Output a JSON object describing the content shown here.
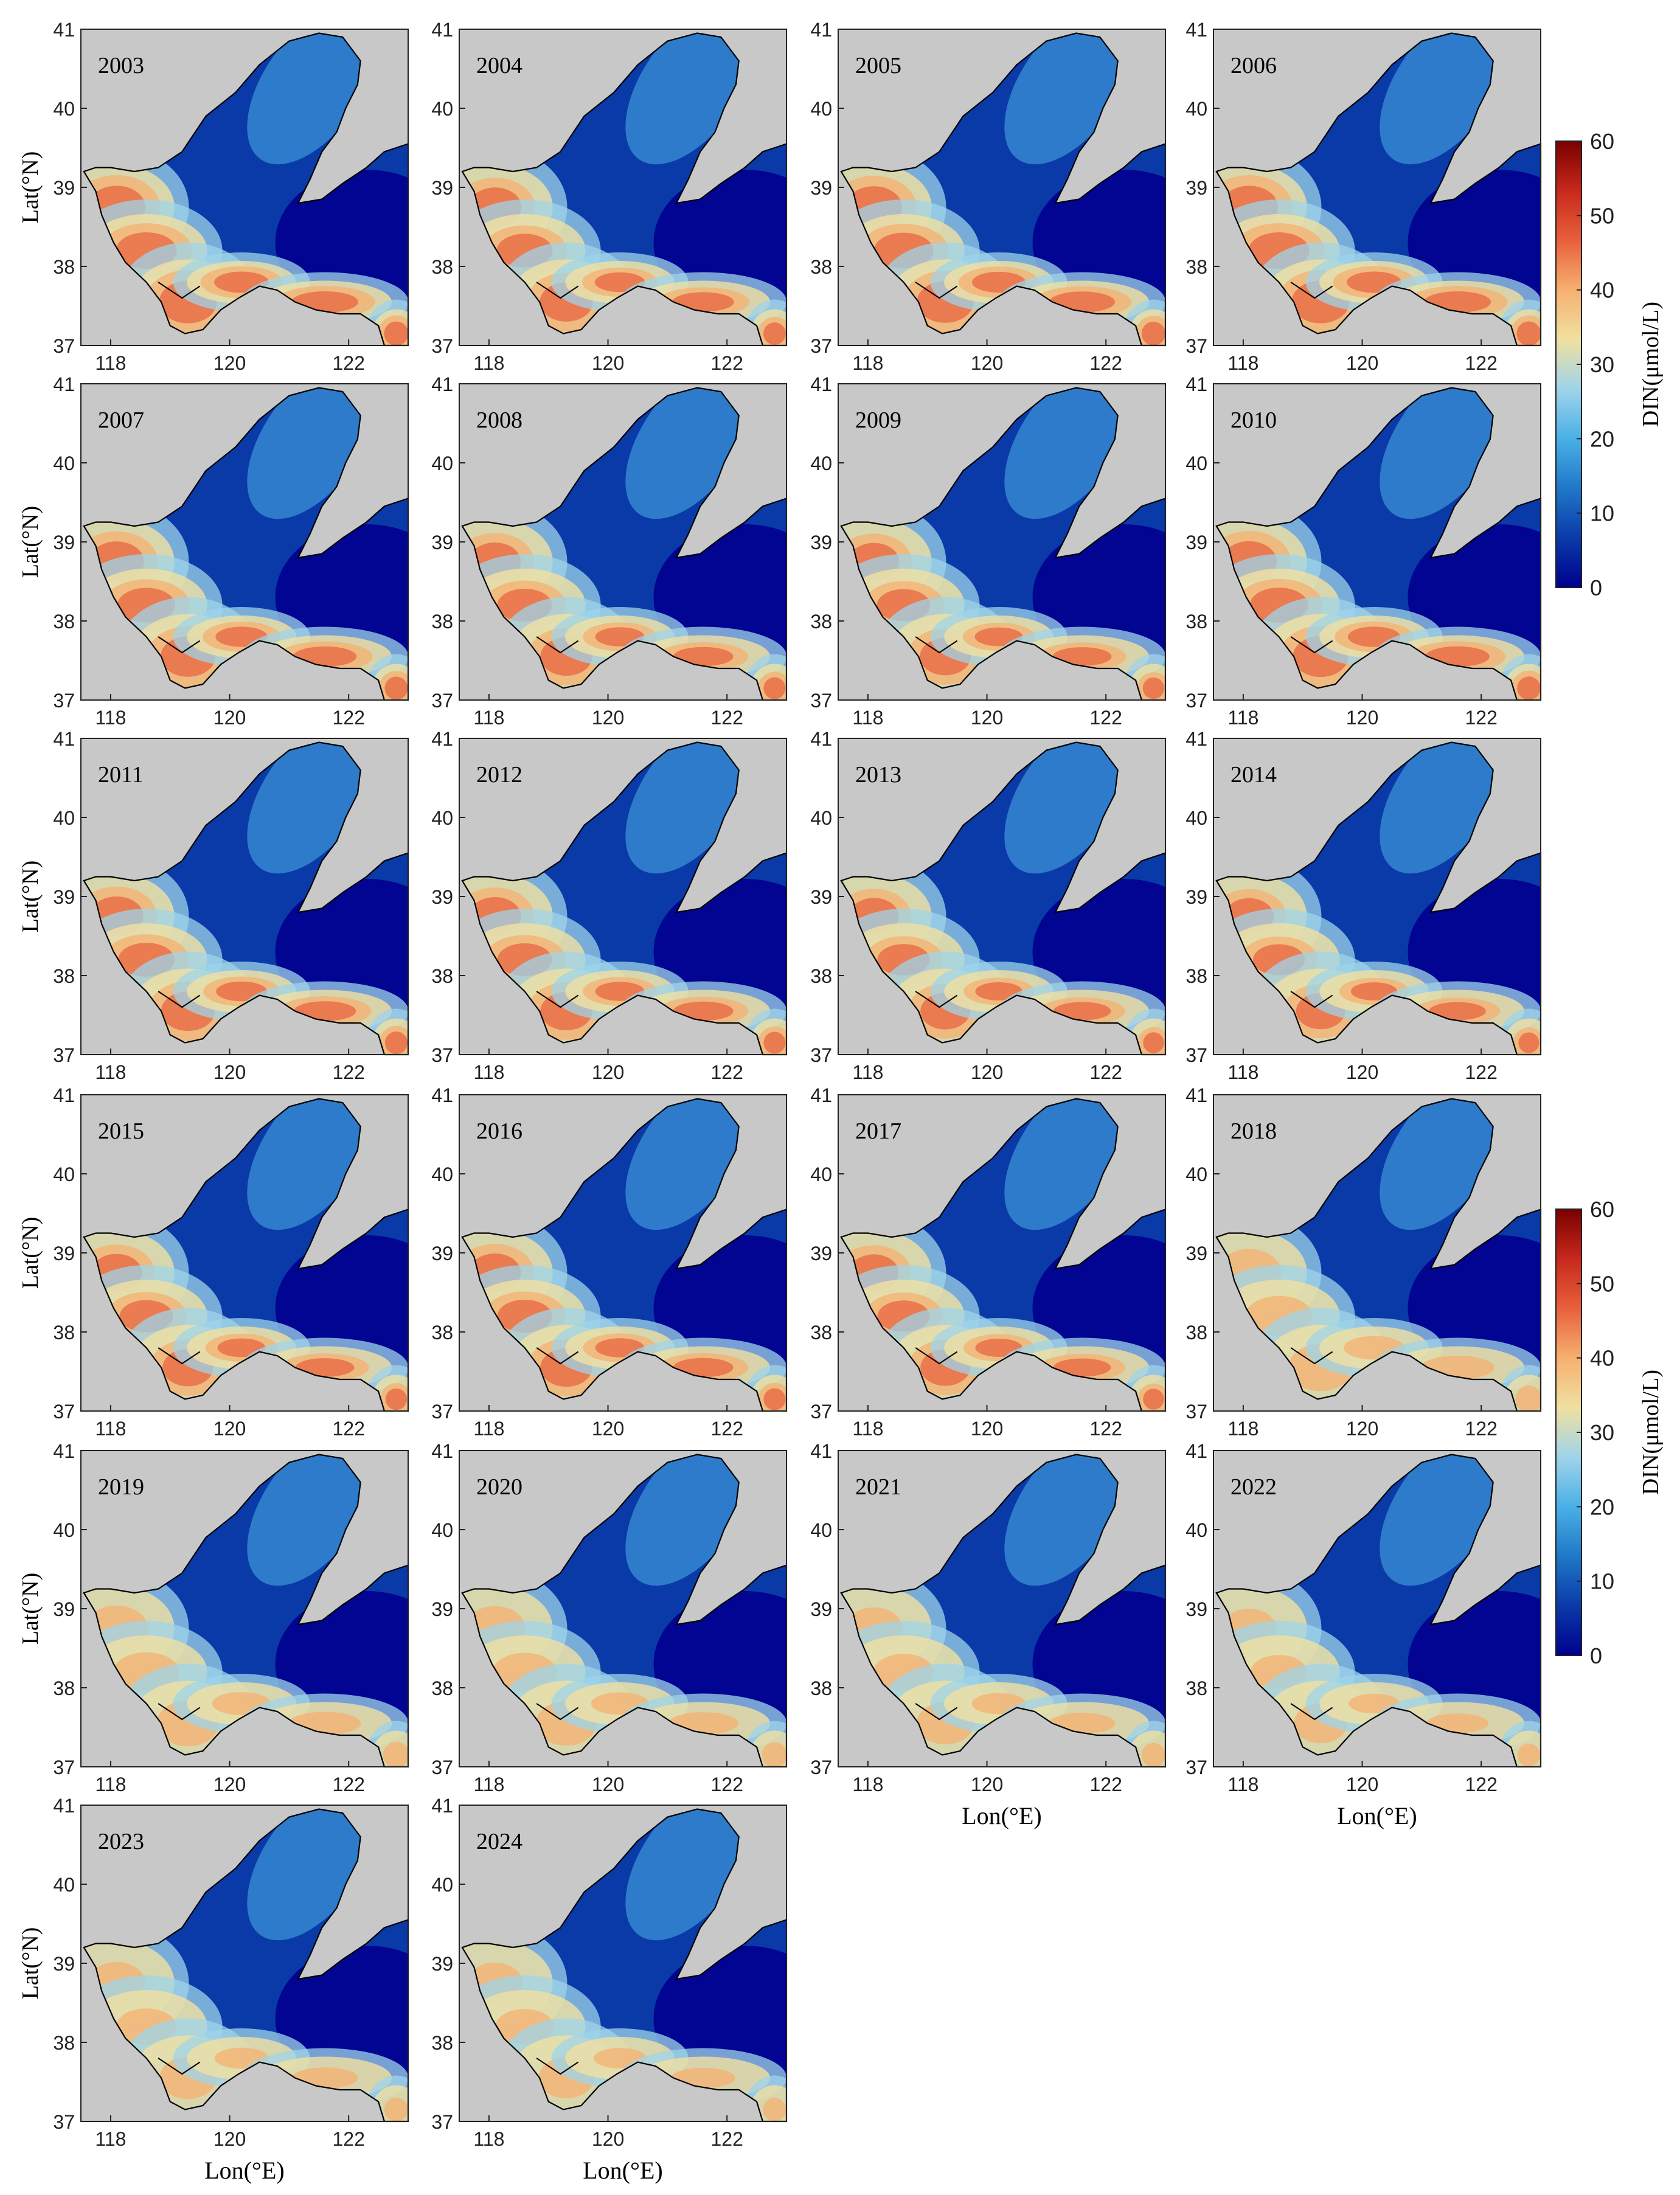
{
  "figure": {
    "axis_label_lat": "Lat(°N)",
    "axis_label_lon": "Lon(°E)",
    "colorbar_label": "DIN(μmol/L)"
  },
  "chart_data": {
    "type": "heatmap",
    "variable": "DIN",
    "unit": "μmol/L",
    "xlabel": "Lon(°E)",
    "ylabel": "Lat(°N)",
    "xlim": [
      117.5,
      123
    ],
    "ylim": [
      37,
      41
    ],
    "x_ticks": [
      118,
      120,
      122
    ],
    "y_ticks": [
      37,
      38,
      39,
      40,
      41
    ],
    "x_tick_labels": [
      "118",
      "120",
      "122"
    ],
    "y_tick_labels": [
      "37",
      "38",
      "39",
      "40",
      "41"
    ],
    "colorbar": {
      "range": [
        0,
        60
      ],
      "ticks": [
        0,
        10,
        20,
        30,
        40,
        50,
        60
      ],
      "tick_labels": [
        "0",
        "10",
        "20",
        "30",
        "40",
        "50",
        "60"
      ],
      "colormap": "jet-like",
      "colors": [
        "#00008f",
        "#0a3aa8",
        "#1f78c8",
        "#4ab0e6",
        "#9fd4ea",
        "#f0e0a0",
        "#f6b070",
        "#e8603c",
        "#c8281c",
        "#7a0000"
      ]
    },
    "land_color": "#c8c8c8",
    "panels": [
      {
        "year": "2003",
        "intensity": 1.0
      },
      {
        "year": "2004",
        "intensity": 0.92
      },
      {
        "year": "2005",
        "intensity": 0.98
      },
      {
        "year": "2006",
        "intensity": 1.0
      },
      {
        "year": "2007",
        "intensity": 0.95
      },
      {
        "year": "2008",
        "intensity": 0.9
      },
      {
        "year": "2009",
        "intensity": 0.88
      },
      {
        "year": "2010",
        "intensity": 0.96
      },
      {
        "year": "2011",
        "intensity": 0.93
      },
      {
        "year": "2012",
        "intensity": 0.9
      },
      {
        "year": "2013",
        "intensity": 0.86
      },
      {
        "year": "2014",
        "intensity": 0.85
      },
      {
        "year": "2015",
        "intensity": 0.88
      },
      {
        "year": "2016",
        "intensity": 0.9
      },
      {
        "year": "2017",
        "intensity": 0.86
      },
      {
        "year": "2018",
        "intensity": 0.74
      },
      {
        "year": "2019",
        "intensity": 0.72
      },
      {
        "year": "2020",
        "intensity": 0.7
      },
      {
        "year": "2021",
        "intensity": 0.66
      },
      {
        "year": "2022",
        "intensity": 0.62
      },
      {
        "year": "2023",
        "intensity": 0.66
      },
      {
        "year": "2024",
        "intensity": 0.64
      }
    ]
  }
}
